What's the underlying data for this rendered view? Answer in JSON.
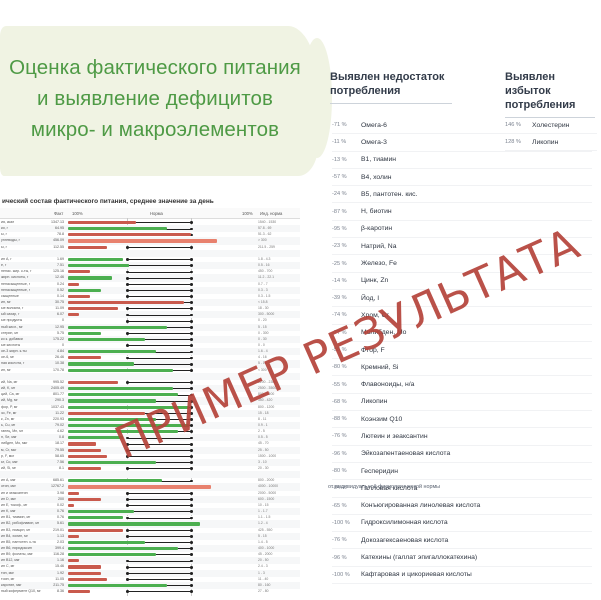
{
  "title_lines": [
    "Оценка фактического питания",
    "и выявление дефицитов",
    "микро- и макроэлементов"
  ],
  "deficit": {
    "heading_line1": "Выявлен недостаток",
    "heading_line2": "потребления",
    "items": [
      {
        "pct": "-71 %",
        "name": "Омега-6"
      },
      {
        "pct": "-11 %",
        "name": "Омега-3"
      },
      {
        "pct": "-13 %",
        "name": "B1, тиамин"
      },
      {
        "pct": "-57 %",
        "name": "B4, холин"
      },
      {
        "pct": "-24 %",
        "name": "B5, пантотен. кис."
      },
      {
        "pct": "-87 %",
        "name": "H, биотин"
      },
      {
        "pct": "-95 %",
        "name": "β-каротин"
      },
      {
        "pct": "-23 %",
        "name": "Натрий, Na"
      },
      {
        "pct": "-25 %",
        "name": "Железо, Fe"
      },
      {
        "pct": "-14 %",
        "name": "Цинк, Zn"
      },
      {
        "pct": "-39 %",
        "name": "Йод, I"
      },
      {
        "pct": "-74 %",
        "name": "Хром, Cr"
      },
      {
        "pct": "-77 %",
        "name": "Молибден, Mo"
      },
      {
        "pct": "-58 %",
        "name": "Фтор, F"
      },
      {
        "pct": "-80 %",
        "name": "Кремний, Si"
      },
      {
        "pct": "-55 %",
        "name": "Флавоноиды, н/а"
      },
      {
        "pct": "-68 %",
        "name": "Ликопин"
      },
      {
        "pct": "-88 %",
        "name": "Коэнзим Q10"
      },
      {
        "pct": "-76 %",
        "name": "Лютеин и зеаксантин"
      },
      {
        "pct": "-96 %",
        "name": "Эйкозапентаеновая кислота"
      },
      {
        "pct": "-80 %",
        "name": "Гесперидин"
      },
      {
        "pct": "-84 %",
        "name": "Галловая кислота"
      },
      {
        "pct": "-65 %",
        "name": "Конъюгированная линолевая кислота"
      },
      {
        "pct": "-100 %",
        "name": "Гидроксилимонная кислота"
      },
      {
        "pct": "-76 %",
        "name": "Докозагексаеновая кислота"
      },
      {
        "pct": "-96 %",
        "name": "Катехины (галлат эпигаллокатехина)"
      },
      {
        "pct": "-100 %",
        "name": "Кафтаровая и цикориевая кислоты"
      }
    ],
    "footnote": "от индивидуальной физиологической нормы"
  },
  "excess": {
    "heading_line1": "Выявлен избыток",
    "heading_line2": "потребления",
    "items": [
      {
        "pct": "146 %",
        "name": "Холестерин"
      },
      {
        "pct": "128 %",
        "name": "Ликопин"
      }
    ]
  },
  "table": {
    "title": "ический состав фактического питания, среднее значение за день",
    "col_fact": "Факт",
    "col_scale_left": "100%",
    "col_scale_mid": "Норма",
    "col_scale_right": "100%",
    "col_norm": "Инд. норма",
    "rows": [
      {
        "name": "ия, ккал",
        "value": "1347.13",
        "norm": "1540 - 1530",
        "fill": 0.62,
        "color": "r"
      },
      {
        "name": "ки, г",
        "value": "64.95",
        "norm": "57.8 - 69",
        "fill": 0.9,
        "color": "g"
      },
      {
        "name": "ы, г",
        "value": "78.8",
        "norm": "51.3 - 62",
        "fill": 1.12,
        "color": "r"
      },
      {
        "name": "углеводы, г",
        "value": "456.09",
        "norm": "> 300",
        "fill": 1.35,
        "color": "o"
      },
      {
        "name": "ы, г",
        "value": "112.55",
        "norm": "211.5 - 259",
        "fill": 0.35,
        "color": "r"
      },
      {
        "name": "",
        "value": "",
        "norm": "",
        "fill": 0,
        "color": "g"
      },
      {
        "name": "ин A, г",
        "value": "1.69",
        "norm": "1.8 - 4.3",
        "fill": 0.5,
        "color": "g"
      },
      {
        "name": "е, г",
        "value": "7.51",
        "norm": "0.5 - 16",
        "fill": 0.55,
        "color": "g"
      },
      {
        "name": "ненас. жир. к-ты, г",
        "value": "125.16",
        "norm": "450 - 700",
        "fill": 0.2,
        "color": "r"
      },
      {
        "name": "жирн. кислоты, г",
        "value": "12.46",
        "norm": "11.2 - 22.1",
        "fill": 0.4,
        "color": "g"
      },
      {
        "name": "ненасыщенные, г",
        "value": "0.24",
        "norm": "0.7 - 7",
        "fill": 0.1,
        "color": "r"
      },
      {
        "name": "ненасыщенные, г",
        "value": "0.52",
        "norm": "0.3 - 3",
        "fill": 0.3,
        "color": "g"
      },
      {
        "name": "сыщенные",
        "value": "0.14",
        "norm": "0.3 - 1.5",
        "fill": 0.2,
        "color": "r"
      },
      {
        "name": "ин, мг",
        "value": "30.75",
        "norm": "< 15.8",
        "fill": 1.05,
        "color": "r"
      },
      {
        "name": "ые волокна, г",
        "value": "11.09",
        "norm": "18 - 30",
        "fill": 0.45,
        "color": "r"
      },
      {
        "name": "ый сахар, г",
        "value": "6.07",
        "norm": "300 - 5000",
        "fill": 0.1,
        "color": "r"
      },
      {
        "name": "ые продукты",
        "value": "0",
        "norm": "0 - 20",
        "fill": 0,
        "color": "g"
      },
      {
        "name": "ный кисл., мг",
        "value": "12.95",
        "norm": "5 - 15",
        "fill": 0.9,
        "color": "g"
      },
      {
        "name": "стерин, мг",
        "value": "5.75",
        "norm": "0 - 300",
        "fill": 0.3,
        "color": "g"
      },
      {
        "name": "ко к. добавки",
        "value": "175.22",
        "norm": "0 - 30",
        "fill": 0.7,
        "color": "g"
      },
      {
        "name": "ые кислоты",
        "value": "0",
        "norm": "0 - 0",
        "fill": 0,
        "color": "g"
      },
      {
        "name": "ое-3 жирн. к-ты",
        "value": "4.84",
        "norm": "1.6 - 4",
        "fill": 0.8,
        "color": "g"
      },
      {
        "name": "ое-6, мг",
        "value": "26.46",
        "norm": "4 - 16",
        "fill": 0.3,
        "color": "r"
      },
      {
        "name": "ная кислота, г",
        "value": "10.38",
        "norm": "5 - 15",
        "fill": 0.6,
        "color": "g"
      },
      {
        "name": "ин, мг",
        "value": "170.78",
        "norm": "< 300",
        "fill": 0.95,
        "color": "g"
      },
      {
        "name": "",
        "value": "",
        "norm": "",
        "fill": 0,
        "color": "g"
      },
      {
        "name": "ий, Na, мг",
        "value": "995.52",
        "norm": "1200 - 2300",
        "fill": 0.45,
        "color": "r"
      },
      {
        "name": "ий, K, мг",
        "value": "2405.49",
        "norm": "2500 - 3500",
        "fill": 0.95,
        "color": "g"
      },
      {
        "name": "ций, Ca, мг",
        "value": "801.77",
        "norm": "800 - 1200",
        "fill": 1.0,
        "color": "g"
      },
      {
        "name": "ий, Mg, мг",
        "value": "290.3",
        "norm": "350 - 420",
        "fill": 0.8,
        "color": "g"
      },
      {
        "name": "фор, P, мг",
        "value": "1037.43",
        "norm": "800 - 1200",
        "fill": 1.1,
        "color": "g"
      },
      {
        "name": "зо, Fe, мг",
        "value": "11.22",
        "norm": "15 - 18",
        "fill": 0.7,
        "color": "r"
      },
      {
        "name": "к, Zn, мг",
        "value": "220.93",
        "norm": "8 - 11",
        "fill": 0.8,
        "color": "g"
      },
      {
        "name": "ь, Cu, мг",
        "value": "79.02",
        "norm": "0.9 - 1",
        "fill": 1.1,
        "color": "g"
      },
      {
        "name": "ганец, Mn, мг",
        "value": "4.62",
        "norm": "2 - 5",
        "fill": 1.0,
        "color": "g"
      },
      {
        "name": "н, Se, мкг",
        "value": "0.8",
        "norm": "0.5 - 5",
        "fill": 0.5,
        "color": "g"
      },
      {
        "name": "либден, Mo, мкг",
        "value": "18.17",
        "norm": "45 - 70",
        "fill": 0.25,
        "color": "r"
      },
      {
        "name": "м, Cr, мкг",
        "value": "79.55",
        "norm": "25 - 50",
        "fill": 0.3,
        "color": "r"
      },
      {
        "name": "р, F, мкг",
        "value": "58.65",
        "norm": "1500 - 1000",
        "fill": 0.35,
        "color": "r"
      },
      {
        "name": "ьт, Co, мкг",
        "value": "7.56",
        "norm": "3 - 10",
        "fill": 0.8,
        "color": "g"
      },
      {
        "name": "ий, Si, мг",
        "value": "8.1",
        "norm": "20 - 30",
        "fill": 0.3,
        "color": "r"
      },
      {
        "name": "",
        "value": "",
        "norm": "",
        "fill": 0,
        "color": "g"
      },
      {
        "name": "ин A, мкг",
        "value": "685.61",
        "norm": "800 - 2000",
        "fill": 0.85,
        "color": "g"
      },
      {
        "name": "отин, мкг",
        "value": "12767.2",
        "norm": "4000 - 10000",
        "fill": 1.3,
        "color": "o"
      },
      {
        "name": "ин и зеаксантин",
        "value": "3.98",
        "norm": "2000 - 5000",
        "fill": 0.1,
        "color": "r"
      },
      {
        "name": "ин D, мкг",
        "value": "200",
        "norm": "600 - 1500",
        "fill": 0.3,
        "color": "r"
      },
      {
        "name": "ин E, токоф., мг",
        "value": "0.02",
        "norm": "10 - 15",
        "fill": 0.05,
        "color": "r"
      },
      {
        "name": "ин K, мкг",
        "value": "0.76",
        "norm": "1 - 1.7",
        "fill": 0.6,
        "color": "g"
      },
      {
        "name": "ин B1, тиамин, мг",
        "value": "0.76",
        "norm": "1.1 - 1.5",
        "fill": 0.5,
        "color": "g"
      },
      {
        "name": "ин B2, рибофлавин, мг",
        "value": "5.61",
        "norm": "1.2 - 4",
        "fill": 1.2,
        "color": "g"
      },
      {
        "name": "ин B3, ниацин, мг",
        "value": "219.01",
        "norm": "425 - 550",
        "fill": 0.5,
        "color": "r"
      },
      {
        "name": "ин B4, холин, мг",
        "value": "1.13",
        "norm": "5 - 15",
        "fill": 0.1,
        "color": "r"
      },
      {
        "name": "ин B5, пантотен. к-та",
        "value": "2.03",
        "norm": "1.4 - 5",
        "fill": 0.7,
        "color": "g"
      },
      {
        "name": "ин B6, пиридоксин",
        "value": "399.4",
        "norm": "400 - 1000",
        "fill": 1.0,
        "color": "g"
      },
      {
        "name": "ин B9, фолаты, мкг",
        "value": "116.28",
        "norm": "45 - 2000",
        "fill": 0.8,
        "color": "g"
      },
      {
        "name": "ин B12, мкг",
        "value": "1.16",
        "norm": "20 - 50",
        "fill": 0.1,
        "color": "r"
      },
      {
        "name": "ин C, мг",
        "value": "15.46",
        "norm": "2.4 - 3",
        "fill": 0.3,
        "color": "r"
      },
      {
        "name": "тин, мкг",
        "value": "1.92",
        "norm": "1 - 3",
        "fill": 0.3,
        "color": "r"
      },
      {
        "name": "тоин, мг",
        "value": "11.05",
        "norm": "11 - 40",
        "fill": 0.35,
        "color": "r"
      },
      {
        "name": "каротин, мкг",
        "value": "211.75",
        "norm": "80 - 160",
        "fill": 0.9,
        "color": "g"
      },
      {
        "name": "ный кофермент Q10, мг",
        "value": "8.36",
        "norm": "27 - 80",
        "fill": 0.2,
        "color": "r"
      }
    ]
  },
  "stamp": "ПРИМЕР РЕЗУЛЬТАТА"
}
